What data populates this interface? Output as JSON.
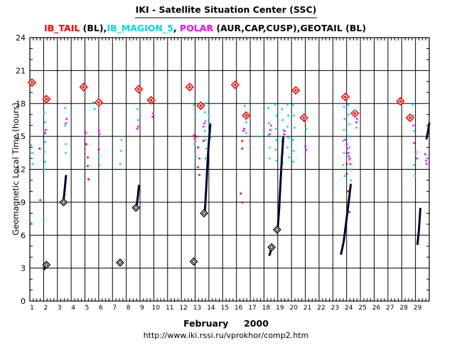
{
  "chart_data": {
    "type": "scatter",
    "title": "IKI - Satellite Situation Center (SSC)",
    "legend": [
      {
        "label": "IB_TAIL",
        "color": "#ff0000"
      },
      {
        "label": " (BL),",
        "color": "#000000"
      },
      {
        "label": "IB_MAGION_5",
        "color": "#00dddd"
      },
      {
        "label": ", ",
        "color": "#000000"
      },
      {
        "label": "POLAR",
        "color": "#ff00ff"
      },
      {
        "label": " (AUR,CAP,CUSP),GEOTAIL (BL)",
        "color": "#000000"
      }
    ],
    "ylabel": "Geomagnetic  Local Time  (hours)",
    "xlabel": "February     2000",
    "source_url": "http://www.iki.rssi.ru/vprokhor/comp2.htm",
    "xlim": [
      1,
      30
    ],
    "ylim": [
      0,
      24
    ],
    "yticks": [
      "0",
      "3",
      "6",
      "9",
      "12",
      "15",
      "18",
      "21",
      "24"
    ],
    "xticks": [
      "1",
      "2",
      "3",
      "4",
      "5",
      "6",
      "7",
      "8",
      "9",
      "10",
      "11",
      "12",
      "13",
      "14",
      "15",
      "16",
      "17",
      "18",
      "19",
      "20",
      "21",
      "22",
      "23",
      "24",
      "25",
      "26",
      "27",
      "28",
      "29"
    ],
    "series": [
      {
        "name": "IB_TAIL diamonds",
        "color": "#ff0000",
        "marker": "diamond",
        "points": [
          [
            1.15,
            19.9
          ],
          [
            2.2,
            18.4
          ],
          [
            4.9,
            19.5
          ],
          [
            6.0,
            18.1
          ],
          [
            8.9,
            19.3
          ],
          [
            9.8,
            18.3
          ],
          [
            12.6,
            19.5
          ],
          [
            13.4,
            17.8
          ],
          [
            15.9,
            19.7
          ],
          [
            16.7,
            16.9
          ],
          [
            20.3,
            19.2
          ],
          [
            20.9,
            16.7
          ],
          [
            23.9,
            18.6
          ],
          [
            24.6,
            17.1
          ],
          [
            27.9,
            18.2
          ],
          [
            28.6,
            16.7
          ]
        ]
      },
      {
        "name": "IB_TAIL dots",
        "color": "#ff0000",
        "marker": "dot",
        "points": [
          [
            1.7,
            13.9
          ],
          [
            1.75,
            9.2
          ],
          [
            5.1,
            14.3
          ],
          [
            5.2,
            13.1
          ],
          [
            5.2,
            12.3
          ],
          [
            5.25,
            11.1
          ],
          [
            6.0,
            13.8
          ],
          [
            13.1,
            15.0
          ],
          [
            13.2,
            14.0
          ],
          [
            13.3,
            13.0
          ],
          [
            13.2,
            12.2
          ],
          [
            13.3,
            11.5
          ],
          [
            13.6,
            14.6
          ],
          [
            16.4,
            14.6
          ],
          [
            16.4,
            13.9
          ],
          [
            16.3,
            9.8
          ],
          [
            16.4,
            9.0
          ],
          [
            24.0,
            12.5
          ],
          [
            24.0,
            11.6
          ],
          [
            24.1,
            10.0
          ],
          [
            24.1,
            9.0
          ],
          [
            24.2,
            8.1
          ]
        ]
      },
      {
        "name": "IB_MAGION_5",
        "color": "#00dddd",
        "marker": "dot",
        "points": [
          [
            1.1,
            14.2
          ],
          [
            1.15,
            13.5
          ],
          [
            1.2,
            12.5
          ],
          [
            1.1,
            7.1
          ],
          [
            2.05,
            17.2
          ],
          [
            2.1,
            16.3
          ],
          [
            2.05,
            15.4
          ],
          [
            2.1,
            14.5
          ],
          [
            2.05,
            13.6
          ],
          [
            2.1,
            12.7
          ],
          [
            2.05,
            12.0
          ],
          [
            2.0,
            7.5
          ],
          [
            3.55,
            17.6
          ],
          [
            3.55,
            16.0
          ],
          [
            3.6,
            14.3
          ],
          [
            3.6,
            13.5
          ],
          [
            5.6,
            18.1
          ],
          [
            5.7,
            17.5
          ],
          [
            6.0,
            13.2
          ],
          [
            6.05,
            12.4
          ],
          [
            7.6,
            13.7
          ],
          [
            7.55,
            12.5
          ],
          [
            7.65,
            14.7
          ],
          [
            8.8,
            17.5
          ],
          [
            8.85,
            16.5
          ],
          [
            12.9,
            17.9
          ],
          [
            13.0,
            16.9
          ],
          [
            12.95,
            14.3
          ],
          [
            13.05,
            13.2
          ],
          [
            13.0,
            11.7
          ],
          [
            13.7,
            18.0
          ],
          [
            13.7,
            17.2
          ],
          [
            13.75,
            16.4
          ],
          [
            13.7,
            15.5
          ],
          [
            13.75,
            14.7
          ],
          [
            13.8,
            13.9
          ],
          [
            13.75,
            13.0
          ],
          [
            14.0,
            17.8
          ],
          [
            14.0,
            16.9
          ],
          [
            14.0,
            16.1
          ],
          [
            14.1,
            14.9
          ],
          [
            16.6,
            17.8
          ],
          [
            16.7,
            16.3
          ],
          [
            16.7,
            15.3
          ],
          [
            17.5,
            15.0
          ],
          [
            18.3,
            17.6
          ],
          [
            18.35,
            16.2
          ],
          [
            18.3,
            15.1
          ],
          [
            18.4,
            14.0
          ],
          [
            18.4,
            13.0
          ],
          [
            18.8,
            17.9
          ],
          [
            18.9,
            16.9
          ],
          [
            18.85,
            15.7
          ],
          [
            18.9,
            14.7
          ],
          [
            18.85,
            13.8
          ],
          [
            18.9,
            12.8
          ],
          [
            19.3,
            17.5
          ],
          [
            19.35,
            16.5
          ],
          [
            19.4,
            15.6
          ],
          [
            19.3,
            14.6
          ],
          [
            19.35,
            13.6
          ],
          [
            19.35,
            12.6
          ],
          [
            19.7,
            17.9
          ],
          [
            19.75,
            16.9
          ],
          [
            19.7,
            15.9
          ],
          [
            19.75,
            14.9
          ],
          [
            19.7,
            14.0
          ],
          [
            19.8,
            13.1
          ],
          [
            20.1,
            17.9
          ],
          [
            20.15,
            16.9
          ],
          [
            20.2,
            15.8
          ],
          [
            20.1,
            14.7
          ],
          [
            20.15,
            13.7
          ],
          [
            20.1,
            12.7
          ],
          [
            21.0,
            17.6
          ],
          [
            21.05,
            15.7
          ],
          [
            23.8,
            17.7
          ],
          [
            23.85,
            16.6
          ],
          [
            23.8,
            15.6
          ],
          [
            23.75,
            14.6
          ],
          [
            23.8,
            13.5
          ],
          [
            23.75,
            12.4
          ],
          [
            23.85,
            11.4
          ],
          [
            24.1,
            17.9
          ],
          [
            24.15,
            17.0
          ],
          [
            24.2,
            16.1
          ],
          [
            24.15,
            15.0
          ],
          [
            24.2,
            14.0
          ],
          [
            24.25,
            13.0
          ],
          [
            24.3,
            12.0
          ],
          [
            24.3,
            11.0
          ],
          [
            24.6,
            17.4
          ],
          [
            24.7,
            15.8
          ],
          [
            28.8,
            17.9
          ],
          [
            28.85,
            16.9
          ],
          [
            28.9,
            15.5
          ],
          [
            28.9,
            14.4
          ],
          [
            29.0,
            13.4
          ],
          [
            28.9,
            12.4
          ],
          [
            28.95,
            11.4
          ]
        ]
      },
      {
        "name": "POLAR",
        "color": "#ff00ff",
        "marker": "dot",
        "points": [
          [
            2.1,
            15.3
          ],
          [
            2.15,
            15.6
          ],
          [
            3.6,
            16.2
          ],
          [
            3.65,
            16.6
          ],
          [
            5.0,
            15.4
          ],
          [
            5.05,
            15.3
          ],
          [
            6.0,
            15.5
          ],
          [
            6.05,
            15.2
          ],
          [
            8.8,
            15.7
          ],
          [
            8.85,
            15.9
          ],
          [
            9.9,
            16.8
          ],
          [
            9.95,
            17.1
          ],
          [
            12.9,
            15.1
          ],
          [
            12.95,
            14.8
          ],
          [
            13.6,
            15.9
          ],
          [
            13.65,
            16.2
          ],
          [
            16.5,
            15.5
          ],
          [
            16.55,
            15.7
          ],
          [
            18.4,
            15.2
          ],
          [
            18.45,
            15.6
          ],
          [
            18.5,
            16.0
          ],
          [
            19.4,
            14.8
          ],
          [
            19.45,
            15.2
          ],
          [
            19.5,
            15.5
          ],
          [
            21.0,
            14.1
          ],
          [
            21.05,
            13.8
          ],
          [
            23.9,
            14.7
          ],
          [
            24.0,
            14.3
          ],
          [
            24.05,
            13.9
          ],
          [
            24.1,
            13.5
          ],
          [
            24.15,
            13.2
          ],
          [
            24.2,
            12.9
          ],
          [
            24.25,
            12.5
          ],
          [
            24.7,
            16.3
          ],
          [
            24.75,
            16.6
          ],
          [
            28.85,
            16.0
          ],
          [
            28.9,
            14.4
          ],
          [
            29.0,
            13.6
          ],
          [
            29.1,
            13.0
          ],
          [
            29.7,
            13.4
          ],
          [
            29.75,
            12.8
          ],
          [
            29.8,
            12.5
          ]
        ]
      },
      {
        "name": "GEOTAIL (BL) tracks",
        "color": "#000033",
        "marker": "line",
        "points": [],
        "tracks": [
          [
            [
              2.05,
              2.9
            ],
            [
              2.15,
              3.2
            ]
          ],
          [
            [
              3.45,
              9.2
            ],
            [
              3.55,
              10.4
            ],
            [
              3.62,
              11.4
            ]
          ],
          [
            [
              8.75,
              8.6
            ],
            [
              8.85,
              9.6
            ],
            [
              8.92,
              10.5
            ]
          ],
          [
            [
              13.7,
              8.0
            ],
            [
              13.8,
              10.2
            ],
            [
              13.9,
              12.6
            ],
            [
              14.0,
              14.5
            ],
            [
              14.1,
              16.1
            ]
          ],
          [
            [
              18.4,
              4.2
            ],
            [
              18.55,
              4.8
            ]
          ],
          [
            [
              19.0,
              6.6
            ],
            [
              19.1,
              8.4
            ],
            [
              19.2,
              10.8
            ],
            [
              19.3,
              13.0
            ],
            [
              19.4,
              14.9
            ]
          ],
          [
            [
              23.6,
              4.3
            ],
            [
              23.8,
              5.5
            ],
            [
              24.0,
              7.5
            ],
            [
              24.15,
              9.0
            ],
            [
              24.3,
              10.6
            ]
          ],
          [
            [
              29.15,
              5.2
            ],
            [
              29.25,
              6.5
            ],
            [
              29.35,
              8.4
            ]
          ],
          [
            [
              29.8,
              14.8
            ],
            [
              29.9,
              15.4
            ],
            [
              30.0,
              16.2
            ]
          ]
        ]
      },
      {
        "name": "GEOTAIL (BL) diamonds",
        "color": "#000000",
        "marker": "open-diamond",
        "points": [
          [
            2.2,
            3.3
          ],
          [
            3.45,
            9.0
          ],
          [
            7.55,
            3.5
          ],
          [
            8.7,
            8.5
          ],
          [
            12.9,
            3.6
          ],
          [
            13.65,
            8.0
          ],
          [
            18.55,
            4.9
          ],
          [
            18.95,
            6.5
          ]
        ]
      }
    ]
  }
}
